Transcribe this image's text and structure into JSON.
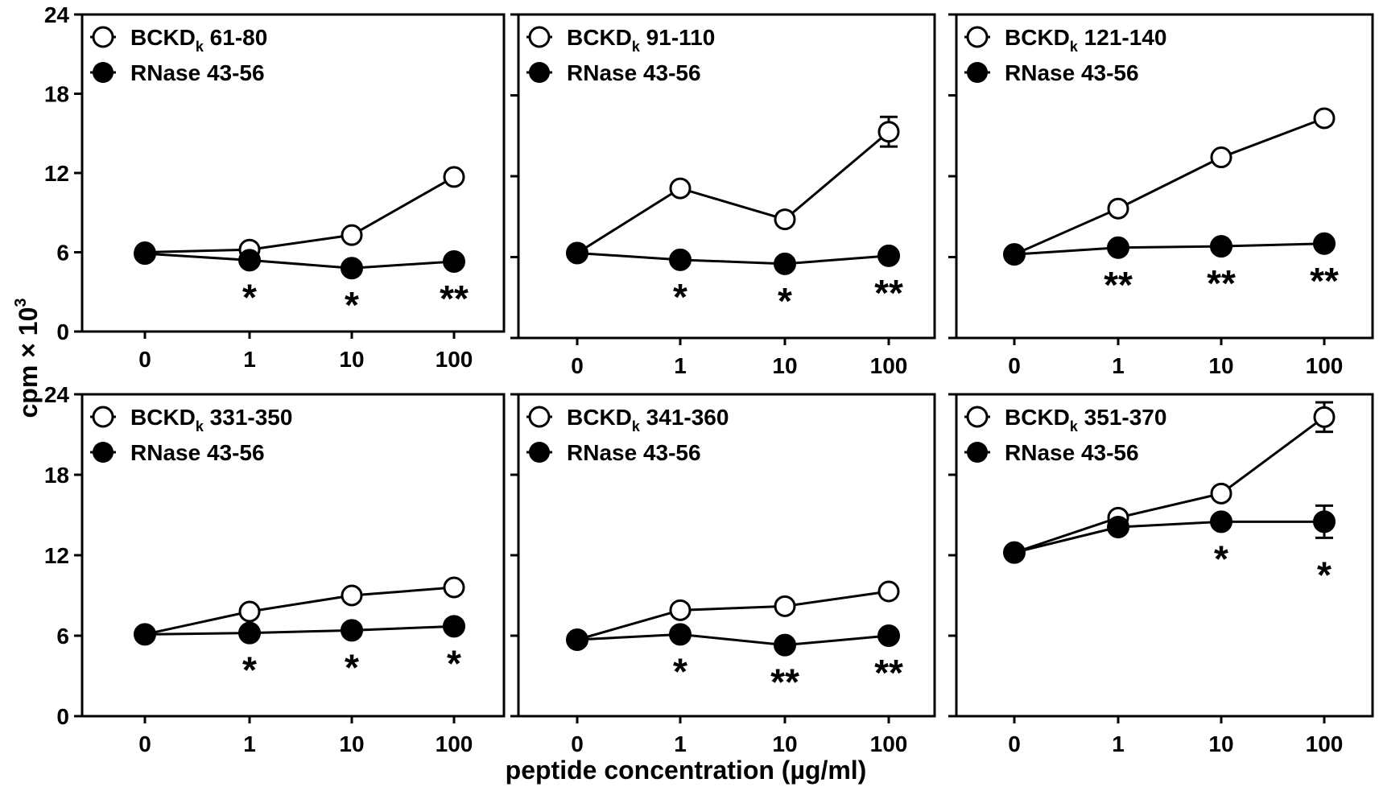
{
  "figure": {
    "ylabel": "cpm × 10",
    "ylabel_sup": "3",
    "xlabel": "peptide concentration (µg/ml)"
  },
  "chart_data": [
    {
      "type": "line",
      "categories": [
        "0",
        "1",
        "10",
        "100"
      ],
      "ylim": [
        0,
        24
      ],
      "yticks": [
        0,
        6,
        12,
        18,
        24
      ],
      "series": [
        {
          "name": "BCKD 61-80",
          "name_main": "BCKD",
          "name_sub": "k",
          "name_rest": " 61-80",
          "marker": "open",
          "values": [
            6.0,
            6.2,
            7.3,
            11.7
          ],
          "err": [
            0,
            0,
            0,
            0
          ]
        },
        {
          "name": "RNase 43-56",
          "marker": "filled",
          "values": [
            5.9,
            5.4,
            4.8,
            5.3
          ],
          "err": [
            0,
            0,
            0,
            0
          ]
        }
      ],
      "annotations": [
        "",
        "*",
        "*",
        "**"
      ]
    },
    {
      "type": "line",
      "categories": [
        "0",
        "1",
        "10",
        "100"
      ],
      "ylim": [
        0,
        24
      ],
      "yticks": [
        0,
        6,
        12,
        18,
        24
      ],
      "series": [
        {
          "name": "BCKD 91-110",
          "name_main": "BCKD",
          "name_sub": "k",
          "name_rest": " 91-110",
          "marker": "open",
          "values": [
            6.3,
            11.1,
            8.8,
            15.3
          ],
          "err": [
            0,
            0,
            0,
            1.1
          ]
        },
        {
          "name": "RNase 43-56",
          "marker": "filled",
          "values": [
            6.3,
            5.8,
            5.5,
            6.1
          ],
          "err": [
            0,
            0,
            0,
            0
          ]
        }
      ],
      "annotations": [
        "",
        "*",
        "*",
        "**"
      ]
    },
    {
      "type": "line",
      "categories": [
        "0",
        "1",
        "10",
        "100"
      ],
      "ylim": [
        0,
        24
      ],
      "yticks": [
        0,
        6,
        12,
        18,
        24
      ],
      "series": [
        {
          "name": "BCKD 121-140",
          "name_main": "BCKD",
          "name_sub": "k",
          "name_rest": " 121-140",
          "marker": "open",
          "values": [
            6.2,
            9.6,
            13.4,
            16.3
          ],
          "err": [
            0,
            0,
            0,
            0
          ]
        },
        {
          "name": "RNase 43-56",
          "marker": "filled",
          "values": [
            6.2,
            6.7,
            6.8,
            7.0
          ],
          "err": [
            0,
            0,
            0,
            0
          ]
        }
      ],
      "annotations": [
        "",
        "**",
        "**",
        "**"
      ]
    },
    {
      "type": "line",
      "categories": [
        "0",
        "1",
        "10",
        "100"
      ],
      "ylim": [
        0,
        24
      ],
      "yticks": [
        0,
        6,
        12,
        18,
        24
      ],
      "series": [
        {
          "name": "BCKD 331-350",
          "name_main": "BCKD",
          "name_sub": "k",
          "name_rest": " 331-350",
          "marker": "open",
          "values": [
            6.1,
            7.8,
            9.0,
            9.6
          ],
          "err": [
            0,
            0,
            0,
            0
          ]
        },
        {
          "name": "RNase 43-56",
          "marker": "filled",
          "values": [
            6.1,
            6.2,
            6.4,
            6.7
          ],
          "err": [
            0,
            0,
            0,
            0
          ]
        }
      ],
      "annotations": [
        "",
        "*",
        "*",
        "*"
      ]
    },
    {
      "type": "line",
      "categories": [
        "0",
        "1",
        "10",
        "100"
      ],
      "ylim": [
        0,
        24
      ],
      "yticks": [
        0,
        6,
        12,
        18,
        24
      ],
      "series": [
        {
          "name": "BCKD 341-360",
          "name_main": "BCKD",
          "name_sub": "k",
          "name_rest": " 341-360",
          "marker": "open",
          "values": [
            5.7,
            7.9,
            8.2,
            9.3
          ],
          "err": [
            0,
            0,
            0,
            0
          ]
        },
        {
          "name": "RNase 43-56",
          "marker": "filled",
          "values": [
            5.7,
            6.1,
            5.3,
            6.0
          ],
          "err": [
            0,
            0,
            0,
            0
          ]
        }
      ],
      "annotations": [
        "",
        "*",
        "**",
        "**"
      ]
    },
    {
      "type": "line",
      "categories": [
        "0",
        "1",
        "10",
        "100"
      ],
      "ylim": [
        0,
        24
      ],
      "yticks": [
        0,
        6,
        12,
        18,
        24
      ],
      "series": [
        {
          "name": "BCKD 351-370",
          "name_main": "BCKD",
          "name_sub": "k",
          "name_rest": " 351-370",
          "marker": "open",
          "values": [
            12.2,
            14.8,
            16.6,
            22.3
          ],
          "err": [
            0,
            0,
            0,
            1.1
          ]
        },
        {
          "name": "RNase 43-56",
          "marker": "filled",
          "values": [
            12.2,
            14.1,
            14.5,
            14.5
          ],
          "err": [
            0,
            0,
            0,
            1.2
          ]
        }
      ],
      "annotations": [
        "",
        "",
        "*",
        "*"
      ]
    }
  ]
}
